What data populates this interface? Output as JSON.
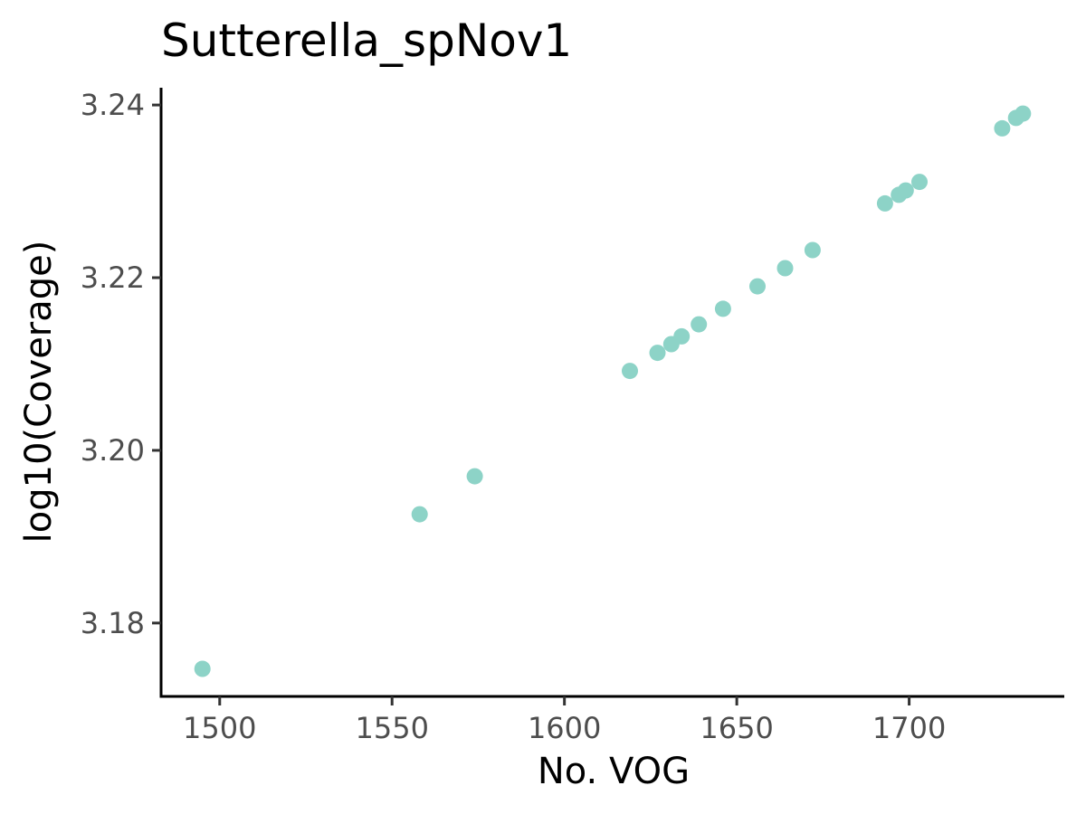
{
  "chart_data": {
    "type": "scatter",
    "title": "Sutterella_spNov1",
    "xlabel": "No. VOG",
    "ylabel": "log10(Coverage)",
    "xlim": [
      1483,
      1745
    ],
    "ylim": [
      3.1715,
      3.242
    ],
    "xticks": [
      1500,
      1550,
      1600,
      1650,
      1700
    ],
    "xtick_labels": [
      "1500",
      "1550",
      "1600",
      "1650",
      "1700"
    ],
    "yticks": [
      3.18,
      3.2,
      3.22,
      3.24
    ],
    "ytick_labels": [
      "3.18",
      "3.20",
      "3.22",
      "3.24"
    ],
    "grid": false,
    "legend": "none",
    "point_color": "#8dd3c7",
    "axis_color": "#000000",
    "tick_label_color": "#4d4d4d",
    "points": [
      {
        "x": 1495,
        "y": 3.1747
      },
      {
        "x": 1558,
        "y": 3.1926
      },
      {
        "x": 1574,
        "y": 3.197
      },
      {
        "x": 1619,
        "y": 3.2092
      },
      {
        "x": 1627,
        "y": 3.2113
      },
      {
        "x": 1631,
        "y": 3.2123
      },
      {
        "x": 1634,
        "y": 3.2132
      },
      {
        "x": 1639,
        "y": 3.2146
      },
      {
        "x": 1646,
        "y": 3.2164
      },
      {
        "x": 1656,
        "y": 3.219
      },
      {
        "x": 1664,
        "y": 3.2211
      },
      {
        "x": 1672,
        "y": 3.2232
      },
      {
        "x": 1693,
        "y": 3.2286
      },
      {
        "x": 1697,
        "y": 3.2296
      },
      {
        "x": 1699,
        "y": 3.2301
      },
      {
        "x": 1703,
        "y": 3.2311
      },
      {
        "x": 1727,
        "y": 3.2373
      },
      {
        "x": 1731,
        "y": 3.2385
      },
      {
        "x": 1733,
        "y": 3.239
      }
    ]
  }
}
